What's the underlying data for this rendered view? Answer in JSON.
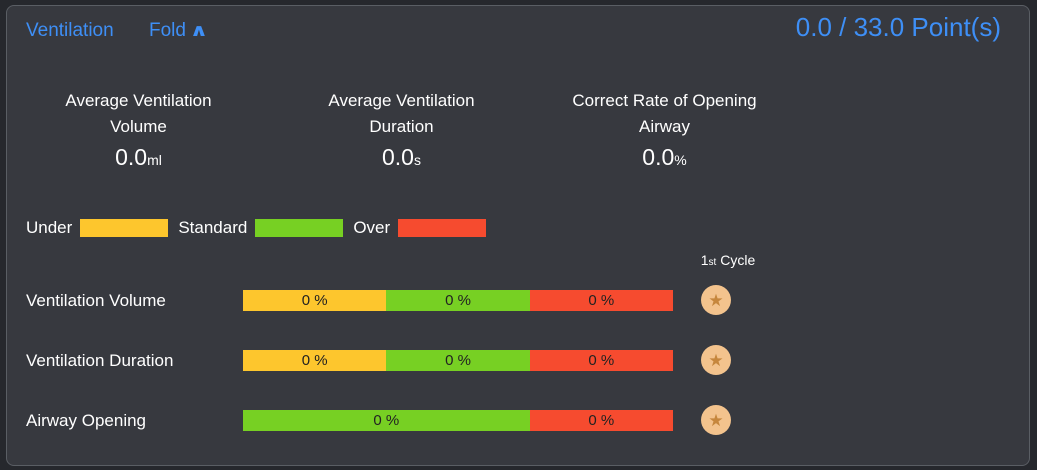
{
  "colors": {
    "accent": "#3E8FF6",
    "under": "#FDC62D",
    "standard": "#77D023",
    "over": "#F64B2F",
    "badge-bg": "#F3C38D",
    "badge-star": "#C6873D",
    "panel-bg": "#37393F",
    "outer-bg": "#26282D",
    "panel-border": "#5A5E64",
    "text": "#FFFFFF",
    "bar-text": "#222222"
  },
  "header": {
    "title": "Ventilation",
    "fold_label": "Fold",
    "fold_icon": "∧",
    "score": "0.0 / 33.0 Point(s)"
  },
  "stats": [
    {
      "label_line1": "Average Ventilation",
      "label_line2": "Volume",
      "value": "0.0",
      "unit": "ml"
    },
    {
      "label_line1": "Average Ventilation",
      "label_line2": "Duration",
      "value": "0.0",
      "unit": "s"
    },
    {
      "label_line1": "Correct Rate of Opening",
      "label_line2": "Airway",
      "value": "0.0",
      "unit": "%"
    }
  ],
  "legend": [
    {
      "label": "Under"
    },
    {
      "label": "Standard"
    },
    {
      "label": "Over"
    }
  ],
  "cycle_header": {
    "ordinal": "1",
    "suffix": "st",
    "word": "Cycle"
  },
  "icons": {
    "star": "★"
  },
  "rows": [
    {
      "label": "Ventilation Volume",
      "segments": [
        {
          "category": "under",
          "text": "0 %"
        },
        {
          "category": "standard",
          "text": "0 %"
        },
        {
          "category": "over",
          "text": "0 %"
        }
      ]
    },
    {
      "label": "Ventilation Duration",
      "segments": [
        {
          "category": "under",
          "text": "0 %"
        },
        {
          "category": "standard",
          "text": "0 %"
        },
        {
          "category": "over",
          "text": "0 %"
        }
      ]
    },
    {
      "label": "Airway Opening",
      "segments": [
        {
          "category": "standard",
          "text": "0 %"
        },
        {
          "category": "over",
          "text": "0 %"
        }
      ]
    }
  ]
}
